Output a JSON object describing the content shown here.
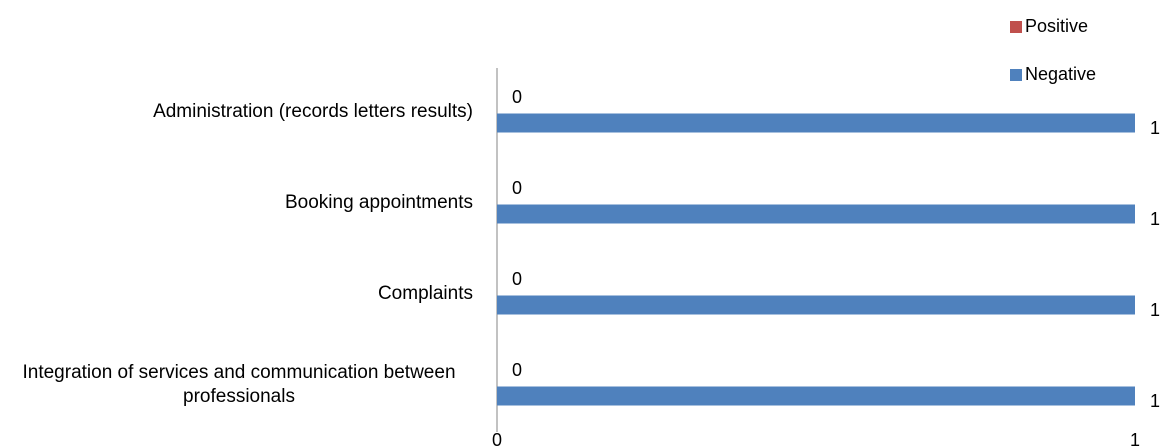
{
  "chart_data": {
    "type": "hbar",
    "categories": [
      "Administration (records letters results)",
      "Booking appointments",
      "Complaints",
      "Integration of services and communication between professionals"
    ],
    "series": [
      {
        "name": "Positive",
        "color": "#c0504d",
        "values": [
          0,
          0,
          0,
          0
        ]
      },
      {
        "name": "Negative",
        "color": "#4f81bd",
        "values": [
          1,
          1,
          1,
          1
        ]
      }
    ],
    "xlim": [
      0,
      1
    ],
    "xticks": [
      0,
      1
    ],
    "legend": "top-right",
    "grid": false
  }
}
